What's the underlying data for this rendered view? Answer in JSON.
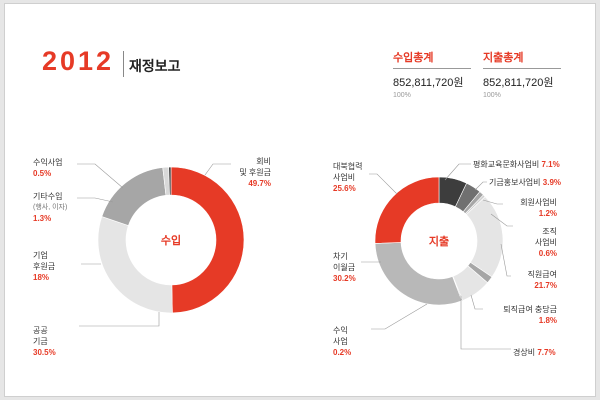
{
  "header": {
    "year": "2012",
    "title": "재정보고"
  },
  "summary": [
    {
      "label": "수입총계",
      "value": "852,811,720원",
      "pct": "100%"
    },
    {
      "label": "지출총계",
      "value": "852,811,720원",
      "pct": "100%"
    }
  ],
  "colors": {
    "accent": "#e63a26",
    "dark": "#3d3d3d",
    "mid_gray": "#a6a6a6",
    "light_gray": "#e5e5e5",
    "black": "#111111"
  },
  "chart_data": [
    {
      "type": "pie",
      "center_label": "수입",
      "slices": [
        {
          "label": "회비 및 후원금",
          "value": 49.7,
          "color": "#e63a26"
        },
        {
          "label": "공공기금",
          "value": 30.5,
          "color": "#e5e5e5"
        },
        {
          "label": "기업 후원금",
          "value": 18,
          "color": "#a6a6a6"
        },
        {
          "label": "기타수입 (행사, 이자)",
          "value": 1.3,
          "color": "#d8d8d8"
        },
        {
          "label": "수익사업",
          "value": 0.5,
          "color": "#3d3d3d"
        }
      ],
      "labels": [
        {
          "lines": [
            "회비",
            "및 후원금"
          ],
          "pct": "49.7%"
        },
        {
          "lines": [
            "수익사업"
          ],
          "pct": "0.5%"
        },
        {
          "lines": [
            "기타수입"
          ],
          "sub": "(행사, 이자)",
          "pct": "1.3%"
        },
        {
          "lines": [
            "기업",
            "후원금"
          ],
          "pct": "18%"
        },
        {
          "lines": [
            "공공",
            "기금"
          ],
          "pct": "30.5%"
        }
      ]
    },
    {
      "type": "pie",
      "center_label": "지출",
      "slices": [
        {
          "label": "평화교육문화사업비",
          "value": 7.1,
          "color": "#3d3d3d"
        },
        {
          "label": "기금홍보사업비",
          "value": 3.9,
          "color": "#707070"
        },
        {
          "label": "회원사업비",
          "value": 1.2,
          "color": "#a6a6a6"
        },
        {
          "label": "조직사업비",
          "value": 0.6,
          "color": "#cfcfcf"
        },
        {
          "label": "직원급여",
          "value": 21.7,
          "color": "#e5e5e5"
        },
        {
          "label": "퇴직급여 충당금",
          "value": 1.8,
          "color": "#a6a6a6"
        },
        {
          "label": "경상비",
          "value": 7.7,
          "color": "#e5e5e5"
        },
        {
          "label": "수익사업",
          "value": 0.2,
          "color": "#111111"
        },
        {
          "label": "차기이월금",
          "value": 30.2,
          "color": "#b8b8b8"
        },
        {
          "label": "대북협력사업비",
          "value": 25.6,
          "color": "#e63a26"
        }
      ],
      "labels": [
        {
          "lines": [
            "대북협력",
            "사업비"
          ],
          "pct": "25.6%"
        },
        {
          "lines": [
            "평화교육문화사업비"
          ],
          "pct": "7.1%"
        },
        {
          "lines": [
            "기금홍보사업비"
          ],
          "pct": "3.9%"
        },
        {
          "lines": [
            "회원사업비"
          ],
          "pct": "1.2%"
        },
        {
          "lines": [
            "조직",
            "사업비"
          ],
          "pct": "0.6%"
        },
        {
          "lines": [
            "직원급여"
          ],
          "pct": "21.7%"
        },
        {
          "lines": [
            "차기",
            "이월금"
          ],
          "pct": "30.2%"
        },
        {
          "lines": [
            "퇴직급여 충당금"
          ],
          "pct": "1.8%"
        },
        {
          "lines": [
            "수익",
            "사업"
          ],
          "pct": "0.2%"
        },
        {
          "lines": [
            "경상비"
          ],
          "pct": "7.7%"
        }
      ]
    }
  ]
}
